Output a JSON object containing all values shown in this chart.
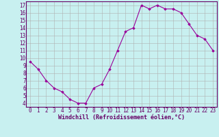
{
  "x": [
    0,
    1,
    2,
    3,
    4,
    5,
    6,
    7,
    8,
    9,
    10,
    11,
    12,
    13,
    14,
    15,
    16,
    17,
    18,
    19,
    20,
    21,
    22,
    23
  ],
  "y": [
    9.5,
    8.5,
    7.0,
    6.0,
    5.5,
    4.5,
    4.0,
    4.0,
    6.0,
    6.5,
    8.5,
    11.0,
    13.5,
    14.0,
    17.0,
    16.5,
    17.0,
    16.5,
    16.5,
    16.0,
    14.5,
    13.0,
    12.5,
    11.0
  ],
  "line_color": "#990099",
  "marker": "D",
  "markersize": 1.8,
  "linewidth": 0.8,
  "xlabel": "Windchill (Refroidissement éolien,°C)",
  "xlabel_fontsize": 6.0,
  "bg_color": "#c8f0f0",
  "grid_color": "#b0b0b0",
  "yticks": [
    4,
    5,
    6,
    7,
    8,
    9,
    10,
    11,
    12,
    13,
    14,
    15,
    16,
    17
  ],
  "xticks": [
    0,
    1,
    2,
    3,
    4,
    5,
    6,
    7,
    8,
    9,
    10,
    11,
    12,
    13,
    14,
    15,
    16,
    17,
    18,
    19,
    20,
    21,
    22,
    23
  ],
  "ylim": [
    3.5,
    17.5
  ],
  "xlim": [
    -0.5,
    23.5
  ],
  "tick_fontsize": 5.5,
  "tick_color": "#660066",
  "spine_color": "#660066"
}
